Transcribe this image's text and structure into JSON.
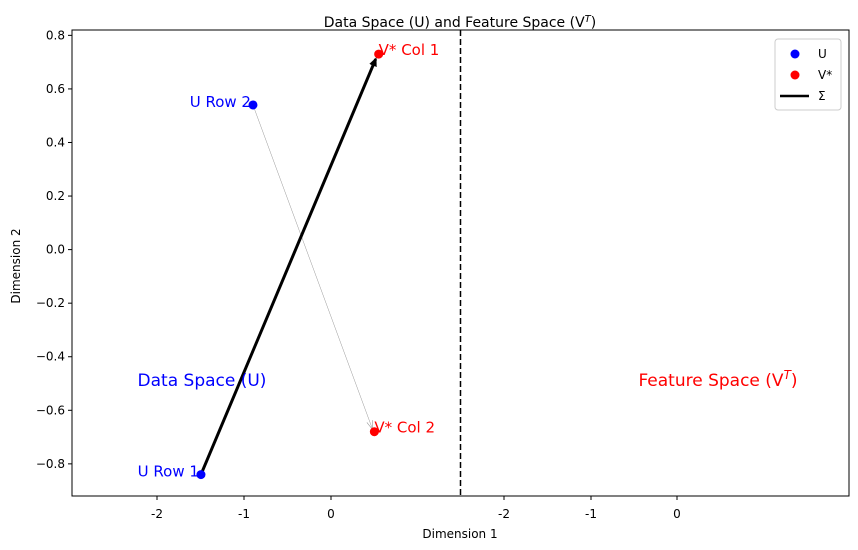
{
  "chart_data": {
    "type": "scatter",
    "title": "Data Space (U) and Feature Space (V",
    "title_sup": "T",
    "title_end": ")",
    "xlabel": "Dimension 1",
    "ylabel": "Dimension 2",
    "ylim": [
      -0.92,
      0.82
    ],
    "yticks": [
      0.8,
      0.6,
      0.4,
      0.2,
      0.0,
      -0.2,
      -0.4,
      -0.6,
      -0.8
    ],
    "ytick_labels": [
      "0.8",
      "0.6",
      "0.4",
      "0.2",
      "0.0",
      "−0.2",
      "−0.4",
      "−0.6",
      "−0.8"
    ],
    "xtick_labels_left": [
      "-2",
      "-1",
      "0"
    ],
    "xtick_labels_right": [
      "-2",
      "-1",
      "0"
    ],
    "grid": false,
    "legend_position": "top-right",
    "colors": {
      "u": "#0000ff",
      "v": "#ff0000",
      "sigma": "#000000",
      "divider": "#000000"
    },
    "series": [
      {
        "name": "U",
        "points": [
          {
            "label": "U Row 1",
            "x": -1.5,
            "y": -0.84
          },
          {
            "label": "U Row 2",
            "x": -0.9,
            "y": 0.54
          }
        ]
      },
      {
        "name": "V*",
        "points": [
          {
            "label": "V* Col 1",
            "x": 0.55,
            "y": 0.73
          },
          {
            "label": "V* Col 2",
            "x": 0.5,
            "y": -0.68
          }
        ]
      }
    ],
    "sigma_label": "Σ",
    "region_labels": {
      "data": "Data Space (U)",
      "feature": "Feature Space (V",
      "feature_sup": "T",
      "feature_end": ")"
    }
  }
}
